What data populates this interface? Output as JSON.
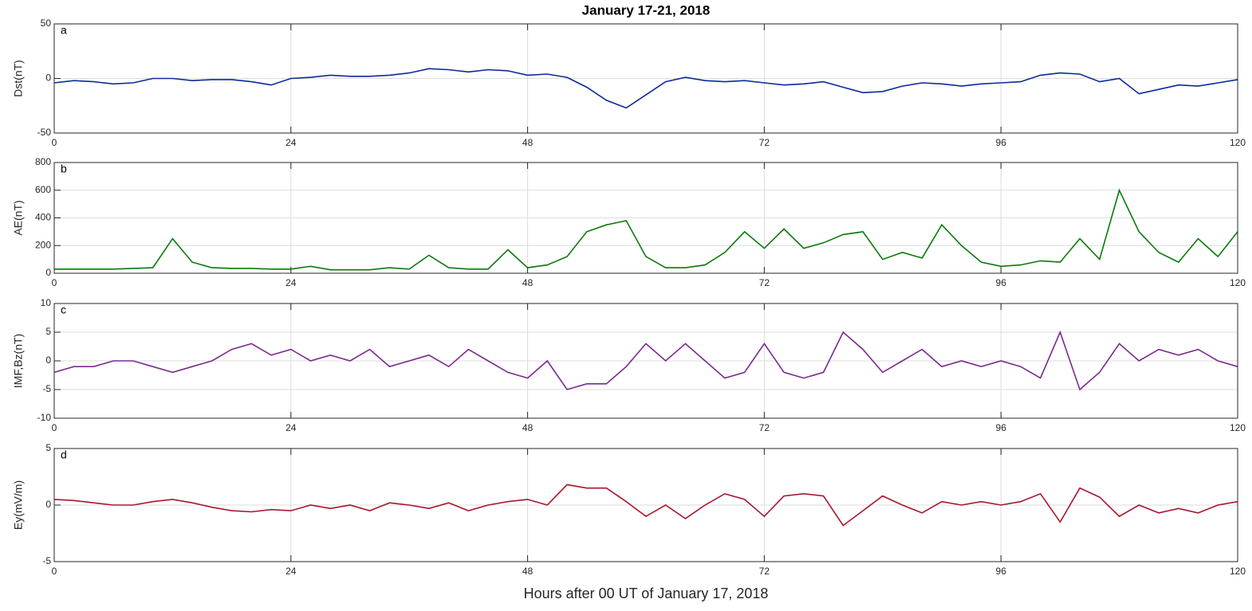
{
  "chart_data": [
    {
      "type": "line",
      "title": "January 17-21, 2018",
      "annotation": "a",
      "ylabel": "Dst(nT)",
      "grid": true,
      "xlim": [
        0,
        120
      ],
      "xticks": [
        0,
        24,
        48,
        72,
        96,
        120
      ],
      "ylim": [
        -50,
        50
      ],
      "yticks": [
        -50,
        0,
        50
      ],
      "x": [
        0,
        2,
        4,
        6,
        8,
        10,
        12,
        14,
        16,
        18,
        20,
        22,
        24,
        26,
        28,
        30,
        32,
        34,
        36,
        38,
        40,
        42,
        44,
        46,
        48,
        50,
        52,
        54,
        56,
        58,
        60,
        62,
        64,
        66,
        68,
        70,
        72,
        74,
        76,
        78,
        80,
        82,
        84,
        86,
        88,
        90,
        92,
        94,
        96,
        98,
        100,
        102,
        104,
        106,
        108,
        110,
        112,
        114,
        116,
        118,
        120
      ],
      "series": [
        {
          "color": "#0b2a9a",
          "values": [
            -4,
            -2,
            -3,
            -5,
            -4,
            0,
            0,
            -2,
            -1,
            -1,
            -3,
            -6,
            0,
            1,
            3,
            2,
            2,
            3,
            5,
            9,
            8,
            6,
            8,
            7,
            3,
            4,
            1,
            -8,
            -20,
            -27,
            -15,
            -3,
            1,
            -2,
            -3,
            -2,
            -4,
            -6,
            -5,
            -3,
            -8,
            -13,
            -12,
            -7,
            -4,
            -5,
            -7,
            -5,
            -4,
            -3,
            3,
            5,
            4,
            -3,
            0,
            -14,
            -10,
            -6,
            -7,
            -4,
            -1
          ]
        }
      ]
    },
    {
      "type": "line",
      "annotation": "b",
      "ylabel": "AE(nT)",
      "grid": true,
      "xlim": [
        0,
        120
      ],
      "xticks": [
        0,
        24,
        48,
        72,
        96,
        120
      ],
      "ylim": [
        0,
        800
      ],
      "yticks": [
        0,
        200,
        400,
        600,
        800
      ],
      "x": [
        0,
        2,
        4,
        6,
        8,
        10,
        12,
        14,
        16,
        18,
        20,
        22,
        24,
        26,
        28,
        30,
        32,
        34,
        36,
        38,
        40,
        42,
        44,
        46,
        48,
        50,
        52,
        54,
        56,
        58,
        60,
        62,
        64,
        66,
        68,
        70,
        72,
        74,
        76,
        78,
        80,
        82,
        84,
        86,
        88,
        90,
        92,
        94,
        96,
        98,
        100,
        102,
        104,
        106,
        108,
        110,
        112,
        114,
        116,
        118,
        120
      ],
      "series": [
        {
          "color": "#0a7a0a",
          "values": [
            30,
            30,
            30,
            30,
            35,
            40,
            250,
            80,
            40,
            35,
            35,
            30,
            30,
            50,
            25,
            25,
            25,
            40,
            30,
            130,
            40,
            30,
            30,
            170,
            40,
            60,
            120,
            300,
            350,
            380,
            120,
            40,
            40,
            60,
            150,
            300,
            180,
            320,
            180,
            220,
            280,
            300,
            100,
            150,
            110,
            350,
            200,
            80,
            50,
            60,
            90,
            80,
            250,
            100,
            600,
            300,
            150,
            80,
            250,
            120,
            300
          ]
        }
      ]
    },
    {
      "type": "line",
      "annotation": "c",
      "ylabel": "IMF,Bz(nT)",
      "grid": true,
      "xlim": [
        0,
        120
      ],
      "xticks": [
        0,
        24,
        48,
        72,
        96,
        120
      ],
      "ylim": [
        -10,
        10
      ],
      "yticks": [
        -10,
        -5,
        0,
        5,
        10
      ],
      "x": [
        0,
        2,
        4,
        6,
        8,
        10,
        12,
        14,
        16,
        18,
        20,
        22,
        24,
        26,
        28,
        30,
        32,
        34,
        36,
        38,
        40,
        42,
        44,
        46,
        48,
        50,
        52,
        54,
        56,
        58,
        60,
        62,
        64,
        66,
        68,
        70,
        72,
        74,
        76,
        78,
        80,
        82,
        84,
        86,
        88,
        90,
        92,
        94,
        96,
        98,
        100,
        102,
        104,
        106,
        108,
        110,
        112,
        114,
        116,
        118,
        120
      ],
      "series": [
        {
          "color": "#7b2a8f",
          "values": [
            -2,
            -1,
            -1,
            0,
            0,
            -1,
            -2,
            -1,
            0,
            2,
            3,
            1,
            2,
            0,
            1,
            0,
            2,
            -1,
            0,
            1,
            -1,
            2,
            0,
            -2,
            -3,
            0,
            -5,
            -4,
            -4,
            -1,
            3,
            0,
            3,
            0,
            -3,
            -2,
            3,
            -2,
            -3,
            -2,
            5,
            2,
            -2,
            0,
            2,
            -1,
            0,
            -1,
            0,
            -1,
            -3,
            5,
            -5,
            -2,
            3,
            0,
            2,
            1,
            2,
            0,
            -1
          ]
        }
      ]
    },
    {
      "type": "line",
      "annotation": "d",
      "ylabel": "Ey(mV/m)",
      "xlabel": "Hours after 00 UT of January 17, 2018",
      "grid": true,
      "xlim": [
        0,
        120
      ],
      "xticks": [
        0,
        24,
        48,
        72,
        96,
        120
      ],
      "ylim": [
        -5,
        5
      ],
      "yticks": [
        -5,
        0,
        5
      ],
      "x": [
        0,
        2,
        4,
        6,
        8,
        10,
        12,
        14,
        16,
        18,
        20,
        22,
        24,
        26,
        28,
        30,
        32,
        34,
        36,
        38,
        40,
        42,
        44,
        46,
        48,
        50,
        52,
        54,
        56,
        58,
        60,
        62,
        64,
        66,
        68,
        70,
        72,
        74,
        76,
        78,
        80,
        82,
        84,
        86,
        88,
        90,
        92,
        94,
        96,
        98,
        100,
        102,
        104,
        106,
        108,
        110,
        112,
        114,
        116,
        118,
        120
      ],
      "series": [
        {
          "color": "#a8162f",
          "values": [
            0.5,
            0.4,
            0.2,
            0,
            0,
            0.3,
            0.5,
            0.2,
            -0.2,
            -0.5,
            -0.6,
            -0.4,
            -0.5,
            0,
            -0.3,
            0,
            -0.5,
            0.2,
            0,
            -0.3,
            0.2,
            -0.5,
            0,
            0.3,
            0.5,
            0,
            1.8,
            1.5,
            1.5,
            0.3,
            -1,
            0,
            -1.2,
            0,
            1,
            0.5,
            -1,
            0.8,
            1,
            0.8,
            -1.8,
            -0.5,
            0.8,
            0,
            -0.7,
            0.3,
            0,
            0.3,
            0,
            0.3,
            1,
            -1.5,
            1.5,
            0.7,
            -1,
            0,
            -0.7,
            -0.3,
            -0.7,
            0,
            0.3
          ]
        }
      ]
    }
  ]
}
